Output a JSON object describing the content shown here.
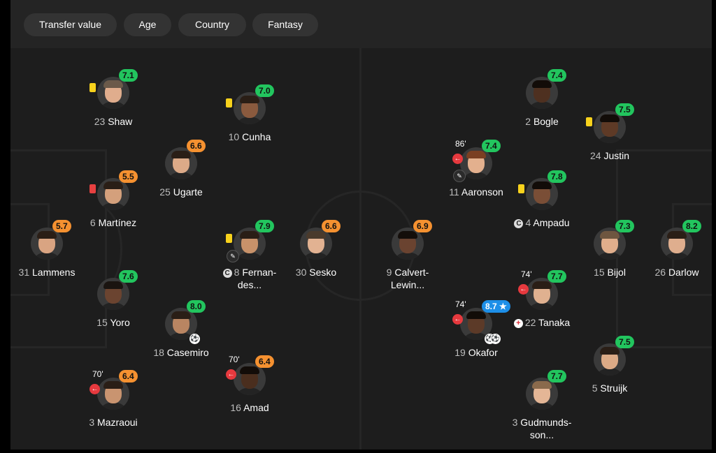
{
  "filters": [
    "Transfer value",
    "Age",
    "Country",
    "Fantasy"
  ],
  "colors": {
    "rating_high": "#22c55e",
    "rating_mid": "#f59130",
    "rating_motm": "#1d8fe8",
    "yellow_card": "#f8d21c",
    "red_card": "#e74040",
    "sub_out": "#e6393e"
  },
  "home": [
    {
      "key": "lammens",
      "number": "31",
      "name": "Lammens",
      "rating": "5.7"
    },
    {
      "key": "shaw",
      "number": "23",
      "name": "Shaw",
      "rating": "7.1"
    },
    {
      "key": "martinez",
      "number": "6",
      "name": "Martínez",
      "rating": "5.5"
    },
    {
      "key": "yoro",
      "number": "15",
      "name": "Yoro",
      "rating": "7.6"
    },
    {
      "key": "mazraoui",
      "number": "3",
      "name": "Mazraoui",
      "rating": "6.4",
      "sub_minute": "70'"
    },
    {
      "key": "ugarte",
      "number": "25",
      "name": "Ugarte",
      "rating": "6.6"
    },
    {
      "key": "casemiro",
      "number": "18",
      "name": "Casemiro",
      "rating": "8.0"
    },
    {
      "key": "cunha",
      "number": "10",
      "name": "Cunha",
      "rating": "7.0"
    },
    {
      "key": "fernandes",
      "number": "8",
      "name_line1": "Fernan-",
      "name_line2": "des...",
      "rating": "7.9",
      "captain_badge": "C"
    },
    {
      "key": "amad",
      "number": "16",
      "name": "Amad",
      "rating": "6.4",
      "sub_minute": "70'"
    },
    {
      "key": "sesko",
      "number": "30",
      "name": "Sesko",
      "rating": "6.6"
    }
  ],
  "away": [
    {
      "key": "calvert",
      "number": "9",
      "name_line1": "Calvert-",
      "name_line2": "Lewin...",
      "rating": "6.9"
    },
    {
      "key": "aaronson",
      "number": "11",
      "name": "Aaronson",
      "rating": "7.4",
      "sub_minute": "86'"
    },
    {
      "key": "okafor",
      "number": "19",
      "name": "Okafor",
      "rating": "8.7",
      "sub_minute": "74'",
      "star": "★"
    },
    {
      "key": "bogle",
      "number": "2",
      "name": "Bogle",
      "rating": "7.4"
    },
    {
      "key": "ampadu",
      "number": "4",
      "name": "Ampadu",
      "rating": "7.8",
      "captain_badge": "C"
    },
    {
      "key": "tanaka",
      "number": "22",
      "name": "Tanaka",
      "rating": "7.7",
      "sub_minute": "74'"
    },
    {
      "key": "gudmundsson",
      "number": "3",
      "name_line1": "Gudmunds-",
      "name_line2": "son...",
      "rating": "7.7"
    },
    {
      "key": "justin",
      "number": "24",
      "name": "Justin",
      "rating": "7.5"
    },
    {
      "key": "bijol",
      "number": "15",
      "name": "Bijol",
      "rating": "7.3"
    },
    {
      "key": "struijk",
      "number": "5",
      "name": "Struijk",
      "rating": "7.5"
    },
    {
      "key": "darlow",
      "number": "26",
      "name": "Darlow",
      "rating": "8.2"
    }
  ]
}
